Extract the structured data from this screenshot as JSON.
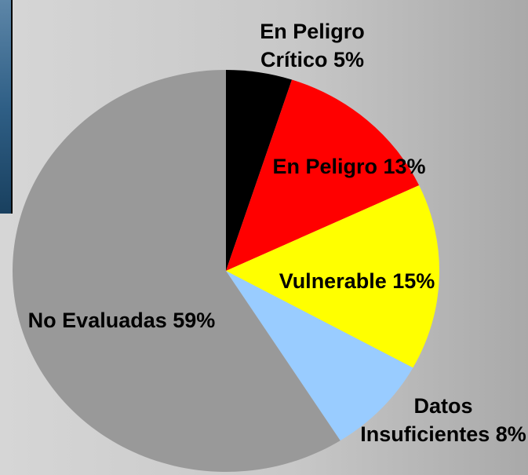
{
  "chart_data": {
    "type": "pie",
    "categories": [
      "En Peligro Crítico",
      "En Peligro",
      "Vulnerable",
      "Datos Insuficientes",
      "No Evaluadas"
    ],
    "values": [
      5,
      13,
      15,
      8,
      59
    ],
    "value_labels": [
      "5%",
      "13%",
      "15%",
      "8%",
      "59%"
    ],
    "colors": [
      "#000000",
      "#ff0000",
      "#ffff00",
      "#99ccff",
      "#999999"
    ]
  }
}
